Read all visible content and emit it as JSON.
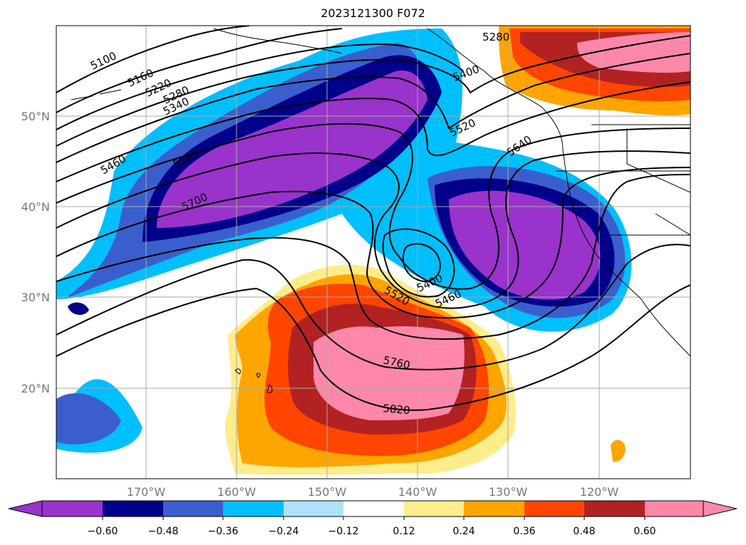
{
  "title": "2023121300 F072",
  "map": {
    "lat_labels": [
      "50°N",
      "40°N",
      "30°N",
      "20°N"
    ],
    "lon_labels": [
      "170°W",
      "160°W",
      "150°W",
      "140°W",
      "130°W",
      "120°W"
    ],
    "grid": true,
    "height_contour_labels": [
      "5100",
      "5160",
      "5220",
      "5280",
      "5340",
      "5460",
      "5580",
      "5700",
      "5280",
      "5400",
      "5520",
      "5640",
      "5400",
      "5460",
      "5520",
      "5760",
      "5820"
    ]
  },
  "colorbar": {
    "ticks": [
      "−0.60",
      "−0.48",
      "−0.36",
      "−0.24",
      "−0.12",
      "0.12",
      "0.24",
      "0.36",
      "0.48",
      "0.60"
    ],
    "colors": [
      "#9933cc",
      "#00008b",
      "#3a5fcd",
      "#00bfff",
      "#b0e2ff",
      "#ffffff",
      "#ffec8b",
      "#ffa500",
      "#ff4500",
      "#b22222",
      "#ff88aa"
    ]
  }
}
